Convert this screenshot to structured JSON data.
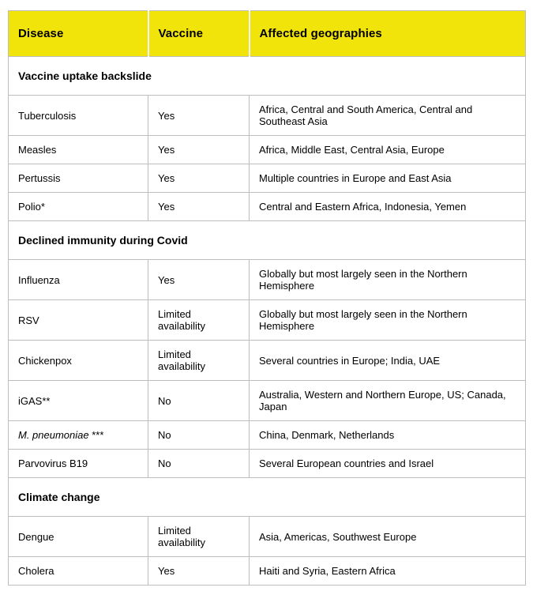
{
  "colors": {
    "header_bg": "#f1e40b",
    "border": "#bdbdbd",
    "text": "#000000"
  },
  "chart_data": {
    "type": "table",
    "columns": [
      "Disease",
      "Vaccine",
      "Affected geographies"
    ],
    "sections": [
      {
        "title": "Vaccine uptake backslide",
        "rows": [
          {
            "disease": "Tuberculosis",
            "vaccine": "Yes",
            "geographies": "Africa, Central and South America, Central and Southeast Asia"
          },
          {
            "disease": "Measles",
            "vaccine": "Yes",
            "geographies": "Africa, Middle East, Central Asia, Europe"
          },
          {
            "disease": "Pertussis",
            "vaccine": "Yes",
            "geographies": "Multiple countries in Europe and East Asia"
          },
          {
            "disease": "Polio*",
            "vaccine": "Yes",
            "geographies": "Central and Eastern Africa, Indonesia, Yemen"
          }
        ]
      },
      {
        "title": "Declined immunity during Covid",
        "rows": [
          {
            "disease": "Influenza",
            "vaccine": "Yes",
            "geographies": "Globally but most largely seen in the Northern Hemisphere"
          },
          {
            "disease": "RSV",
            "vaccine": "Limited availability",
            "geographies": "Globally but most largely seen in the Northern Hemisphere"
          },
          {
            "disease": "Chickenpox",
            "vaccine": "Limited availability",
            "geographies": "Several countries in Europe; India, UAE"
          },
          {
            "disease": "iGAS**",
            "vaccine": "No",
            "geographies": "Australia, Western and Northern Europe, US; Canada, Japan"
          },
          {
            "disease": "M. pneumoniae",
            "disease_suffix": "***",
            "disease_italic": true,
            "vaccine": "No",
            "geographies": "China, Denmark, Netherlands"
          },
          {
            "disease": "Parvovirus B19",
            "vaccine": "No",
            "geographies": "Several European countries and Israel"
          }
        ]
      },
      {
        "title": "Climate change",
        "rows": [
          {
            "disease": "Dengue",
            "vaccine": "Limited availability",
            "geographies": "Asia, Americas, Southwest Europe"
          },
          {
            "disease": "Cholera",
            "vaccine": "Yes",
            "geographies": "Haiti and Syria, Eastern Africa"
          }
        ]
      }
    ]
  }
}
